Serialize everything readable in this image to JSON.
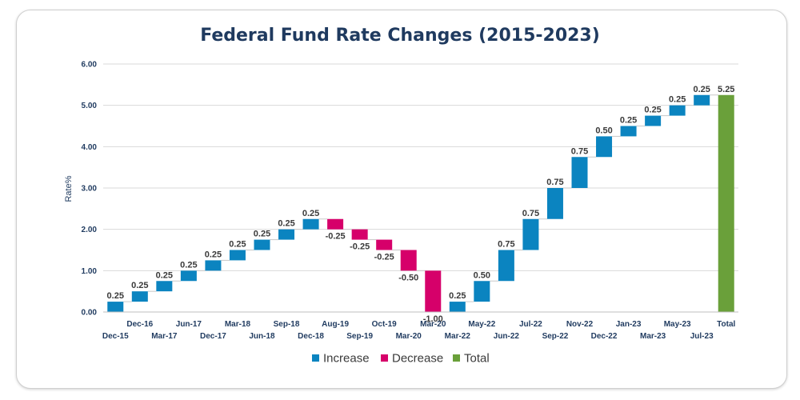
{
  "chart_data": {
    "type": "waterfall",
    "title": "Federal Fund Rate Changes (2015-2023)",
    "xlabel": "",
    "ylabel": "Rate%",
    "ylim": [
      0,
      6
    ],
    "yticks": [
      "0.00",
      "1.00",
      "2.00",
      "3.00",
      "4.00",
      "5.00",
      "6.00"
    ],
    "categories": [
      "Dec-15",
      "Dec-16",
      "Mar-17",
      "Jun-17",
      "Dec-17",
      "Mar-18",
      "Jun-18",
      "Sep-18",
      "Dec-18",
      "Aug-19",
      "Sep-19",
      "Oct-19",
      "Mar-20",
      "Mar-20",
      "Mar-22",
      "May-22",
      "Jun-22",
      "Jul-22",
      "Sep-22",
      "Nov-22",
      "Dec-22",
      "Jan-23",
      "Mar-23",
      "May-23",
      "Jul-23",
      "Total"
    ],
    "values": [
      0.25,
      0.25,
      0.25,
      0.25,
      0.25,
      0.25,
      0.25,
      0.25,
      0.25,
      -0.25,
      -0.25,
      -0.25,
      -0.5,
      -1.0,
      0.25,
      0.5,
      0.75,
      0.75,
      0.75,
      0.75,
      0.5,
      0.25,
      0.25,
      0.25,
      0.25,
      5.25
    ],
    "value_labels": [
      "0.25",
      "0.25",
      "0.25",
      "0.25",
      "0.25",
      "0.25",
      "0.25",
      "0.25",
      "0.25",
      "-0.25",
      "-0.25",
      "-0.25",
      "-0.50",
      "-1.00",
      "0.25",
      "0.50",
      "0.75",
      "0.75",
      "0.75",
      "0.75",
      "0.50",
      "0.25",
      "0.25",
      "0.25",
      "0.25",
      "5.25"
    ],
    "kinds": [
      "increase",
      "increase",
      "increase",
      "increase",
      "increase",
      "increase",
      "increase",
      "increase",
      "increase",
      "decrease",
      "decrease",
      "decrease",
      "decrease",
      "decrease",
      "increase",
      "increase",
      "increase",
      "increase",
      "increase",
      "increase",
      "increase",
      "increase",
      "increase",
      "increase",
      "increase",
      "total"
    ],
    "legend": [
      {
        "name": "Increase",
        "color": "#0b84c0"
      },
      {
        "name": "Decrease",
        "color": "#d6006a"
      },
      {
        "name": "Total",
        "color": "#6aa03a"
      }
    ],
    "legend_position": "bottom",
    "grid": true
  }
}
